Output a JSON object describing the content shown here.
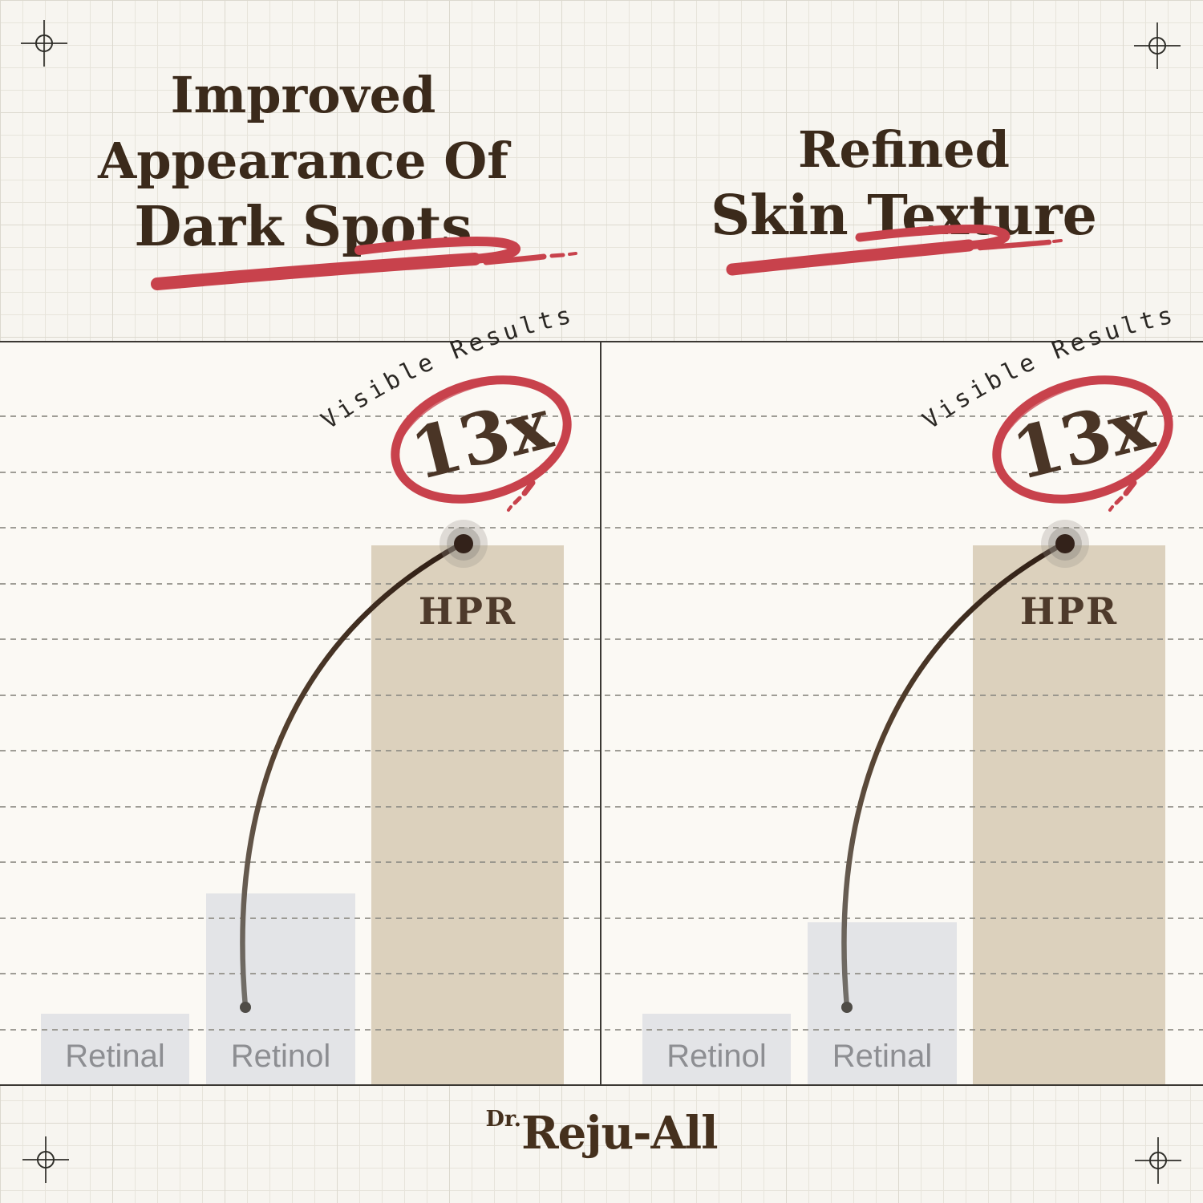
{
  "header": {
    "left_title_lines": [
      "Improved",
      "Appearance Of",
      "Dark Spots"
    ],
    "right_title_lines": [
      "Refined",
      "Skin Texture"
    ],
    "title_color": "#3b2a1b",
    "underline_color": "#c8424c"
  },
  "chart_data": {
    "type": "bar",
    "panels": [
      {
        "title": "Improved Appearance Of Dark Spots",
        "annotation": "Visible Results",
        "multiplier": "13x",
        "bars": [
          {
            "label": "Retinal",
            "value": 1.7
          },
          {
            "label": "Retinol",
            "value": 4.6
          },
          {
            "label": "HPR",
            "value": 13
          }
        ]
      },
      {
        "title": "Refined Skin Texture",
        "annotation": "Visible Results",
        "multiplier": "13x",
        "bars": [
          {
            "label": "Retinol",
            "value": 1.7
          },
          {
            "label": "Retinal",
            "value": 3.9
          },
          {
            "label": "HPR",
            "value": 13
          }
        ]
      }
    ],
    "axis_max": 13,
    "gridline_count": 12,
    "grid_style": "dashed",
    "legend_position": "none",
    "bar_color_standard": "#e3e4e7",
    "bar_color_highlight": "#dcd1bd",
    "annotation_red": "#c8424c",
    "multiplier_text_color": "#4a3526",
    "bar_label_color": "#8d8e92",
    "hpr_label_color": "#4e3a2b"
  },
  "footer": {
    "brand_prefix": "Dr.",
    "brand_name": "Reju-All",
    "brand_color": "#45301d"
  }
}
